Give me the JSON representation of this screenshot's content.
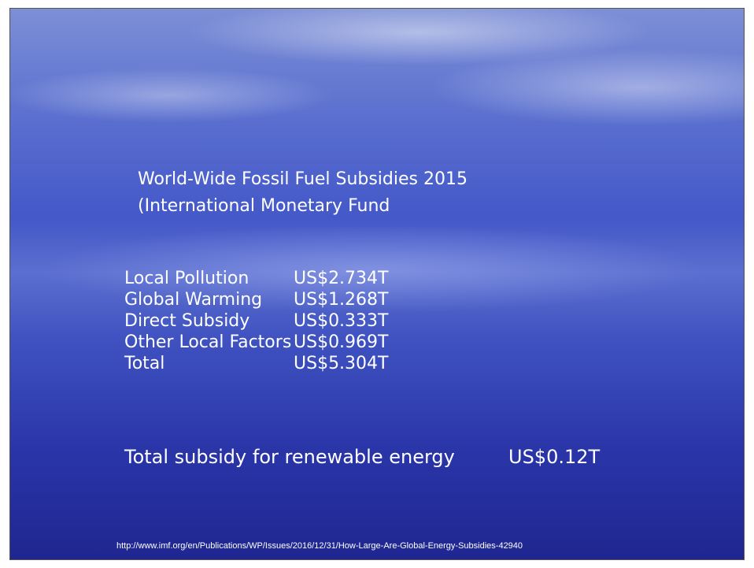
{
  "title": {
    "line1": "World-Wide Fossil Fuel Subsidies 2015",
    "line2": "(International Monetary Fund"
  },
  "table": {
    "rows": [
      [
        "Local Pollution",
        "US$2.734T"
      ],
      [
        "Global Warming",
        "US$1.268T"
      ],
      [
        "Direct Subsidy",
        "US$0.333T"
      ],
      [
        "Other Local Factors",
        "US$0.969T"
      ],
      [
        "Total",
        "US$5.304T"
      ]
    ]
  },
  "renewable": {
    "label": "Total subsidy for renewable energy",
    "value": "US$0.12T"
  },
  "source": "http://www.imf.org/en/Publications/WP/Issues/2016/12/31/How-Large-Are-Global-Energy-Subsidies-42940"
}
